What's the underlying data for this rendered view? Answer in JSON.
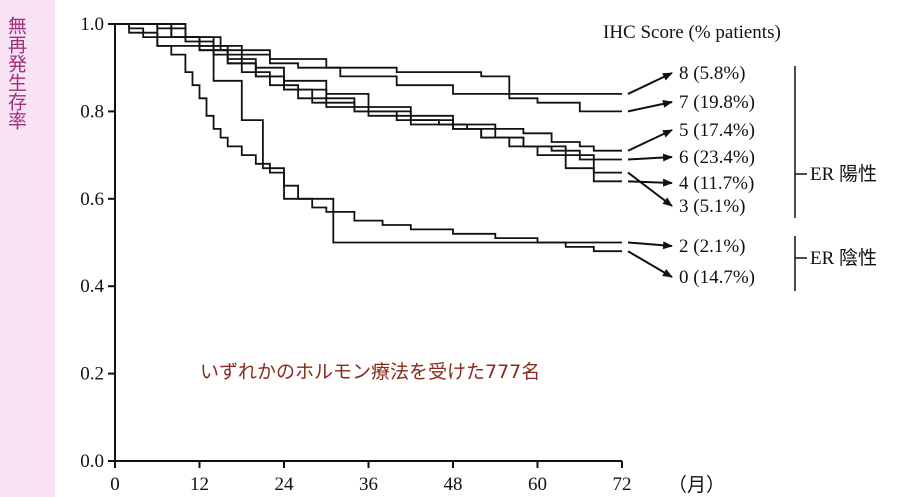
{
  "y_axis_label": "無再発生存率",
  "x_unit_label": "（月）",
  "legend_title": "IHC Score (% patients)",
  "annotation": "いずれかのホルモン療法を受けた777名",
  "group_labels": {
    "positive": "ER 陽性",
    "negative": "ER 陰性"
  },
  "colors": {
    "label_strip": "#f7e3f3",
    "label_text": "#a0307e",
    "annotation": "#8a2a1c",
    "line": "#111111"
  },
  "chart_data": {
    "type": "line",
    "step": true,
    "xlim": [
      0,
      72
    ],
    "ylim": [
      0.0,
      1.0
    ],
    "x_ticks": [
      0,
      12,
      24,
      36,
      48,
      60,
      72
    ],
    "y_ticks": [
      "0.0",
      "0.2",
      "0.4",
      "0.6",
      "0.8",
      "1.0"
    ],
    "y_tick_values": [
      0.0,
      0.2,
      0.4,
      0.6,
      0.8,
      1.0
    ],
    "series": [
      {
        "name": "8 (5.8%)",
        "group": "positive",
        "x": [
          0,
          10,
          15,
          22,
          30,
          40,
          52,
          56,
          66,
          72
        ],
        "y": [
          1.0,
          0.97,
          0.94,
          0.92,
          0.9,
          0.89,
          0.88,
          0.84,
          0.84,
          0.84
        ]
      },
      {
        "name": "7 (19.8%)",
        "group": "positive",
        "x": [
          0,
          6,
          10,
          14,
          18,
          22,
          26,
          32,
          40,
          48,
          56,
          60,
          66,
          72
        ],
        "y": [
          1.0,
          0.99,
          0.97,
          0.95,
          0.93,
          0.91,
          0.9,
          0.88,
          0.86,
          0.84,
          0.83,
          0.82,
          0.8,
          0.8
        ]
      },
      {
        "name": "5 (17.4%)",
        "group": "positive",
        "x": [
          0,
          8,
          12,
          16,
          20,
          24,
          30,
          36,
          42,
          48,
          54,
          58,
          62,
          66,
          68,
          72
        ],
        "y": [
          1.0,
          0.97,
          0.95,
          0.92,
          0.9,
          0.87,
          0.84,
          0.81,
          0.79,
          0.77,
          0.76,
          0.75,
          0.73,
          0.72,
          0.71,
          0.71
        ]
      },
      {
        "name": "6 (23.4%)",
        "group": "positive",
        "x": [
          0,
          6,
          12,
          16,
          20,
          24,
          28,
          34,
          40,
          46,
          50,
          54,
          58,
          62,
          66,
          72
        ],
        "y": [
          1.0,
          0.97,
          0.94,
          0.91,
          0.88,
          0.85,
          0.82,
          0.8,
          0.78,
          0.77,
          0.76,
          0.74,
          0.72,
          0.71,
          0.69,
          0.69
        ]
      },
      {
        "name": "4 (11.7%)",
        "group": "positive",
        "x": [
          0,
          8,
          12,
          16,
          20,
          24,
          30,
          36,
          42,
          48,
          52,
          56,
          60,
          64,
          68,
          72
        ],
        "y": [
          1.0,
          0.97,
          0.94,
          0.91,
          0.88,
          0.85,
          0.81,
          0.79,
          0.77,
          0.76,
          0.74,
          0.72,
          0.7,
          0.67,
          0.64,
          0.64
        ]
      },
      {
        "name": "3 (5.1%)",
        "group": "positive",
        "x": [
          0,
          10,
          14,
          18,
          22,
          26,
          34,
          42,
          48,
          52,
          58,
          64,
          68,
          72
        ],
        "y": [
          1.0,
          0.96,
          0.93,
          0.89,
          0.86,
          0.83,
          0.8,
          0.78,
          0.76,
          0.74,
          0.72,
          0.7,
          0.66,
          0.66
        ]
      },
      {
        "name": "2 (2.1%)",
        "group": "negative",
        "x": [
          0,
          2,
          6,
          12,
          14,
          18,
          21,
          24,
          31,
          72
        ],
        "y": [
          1.0,
          0.98,
          0.95,
          0.95,
          0.87,
          0.78,
          0.67,
          0.6,
          0.5,
          0.5
        ]
      },
      {
        "name": "0 (14.7%)",
        "group": "negative",
        "x": [
          0,
          2,
          4,
          6,
          8,
          10,
          11,
          12,
          13,
          14,
          15,
          16,
          18,
          20,
          22,
          24,
          26,
          28,
          30,
          34,
          38,
          42,
          48,
          54,
          60,
          64,
          68,
          72
        ],
        "y": [
          1.0,
          0.99,
          0.97,
          0.95,
          0.93,
          0.89,
          0.86,
          0.83,
          0.79,
          0.76,
          0.74,
          0.72,
          0.7,
          0.68,
          0.66,
          0.63,
          0.6,
          0.58,
          0.57,
          0.55,
          0.54,
          0.53,
          0.52,
          0.51,
          0.5,
          0.49,
          0.48,
          0.48
        ]
      }
    ]
  }
}
